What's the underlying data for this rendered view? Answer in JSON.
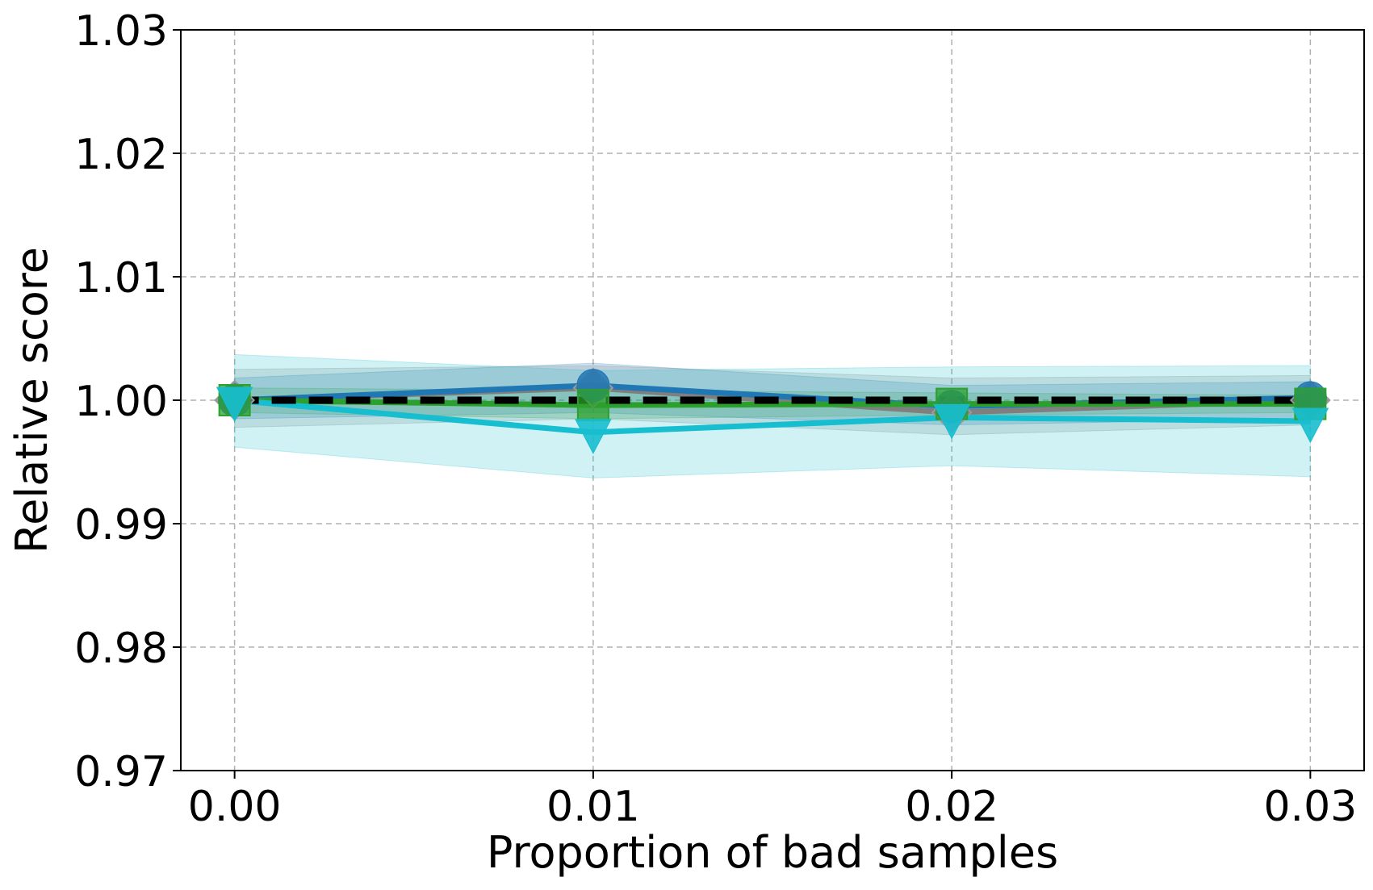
{
  "chart_data": {
    "type": "line",
    "xlabel": "Proportion of bad samples",
    "ylabel": "Relative score",
    "xlim": [
      -0.0015,
      0.0315
    ],
    "ylim": [
      0.97,
      1.03
    ],
    "xticks": [
      0.0,
      0.01,
      0.02,
      0.03
    ],
    "xtick_labels": [
      "0.00",
      "0.01",
      "0.02",
      "0.03"
    ],
    "yticks": [
      0.97,
      0.98,
      0.99,
      1.0,
      1.01,
      1.02,
      1.03
    ],
    "ytick_labels": [
      "0.97",
      "0.98",
      "0.99",
      "1.00",
      "1.01",
      "1.02",
      "1.03"
    ],
    "grid": true,
    "x": [
      0.0,
      0.01,
      0.02,
      0.03
    ],
    "series": [
      {
        "color": "#7f7f7f",
        "marker": "diamond",
        "values": [
          1.0,
          1.001,
          0.999,
          1.0
        ],
        "band_lower": [
          0.9978,
          0.9985,
          0.9972,
          0.998
        ],
        "band_upper": [
          1.0025,
          1.0028,
          1.0018,
          1.002
        ]
      },
      {
        "color": "#1f77b4",
        "marker": "circle",
        "values": [
          1.0,
          1.0012,
          0.9995,
          1.0002
        ],
        "band_lower": [
          0.9985,
          0.999,
          0.998,
          0.9985
        ],
        "band_upper": [
          1.0018,
          1.003,
          1.0012,
          1.0015
        ]
      },
      {
        "color": "#2ca02c",
        "marker": "square",
        "values": [
          1.0,
          0.9996,
          0.9997,
          0.9997
        ],
        "band_lower": [
          0.999,
          0.9985,
          0.9988,
          0.999
        ],
        "band_upper": [
          1.001,
          1.0008,
          1.0006,
          1.0004
        ]
      },
      {
        "color": "#17becf",
        "marker": "triangle-down",
        "values": [
          1.0,
          0.9974,
          0.9986,
          0.9983
        ],
        "band_lower": [
          0.9962,
          0.9937,
          0.9947,
          0.9938
        ],
        "band_upper": [
          1.0037,
          1.0024,
          1.0027,
          1.0028
        ]
      },
      {
        "color": "#000000",
        "marker": "none",
        "line_style": "dashed",
        "values": [
          1.0,
          1.0,
          1.0,
          1.0
        ]
      }
    ]
  }
}
